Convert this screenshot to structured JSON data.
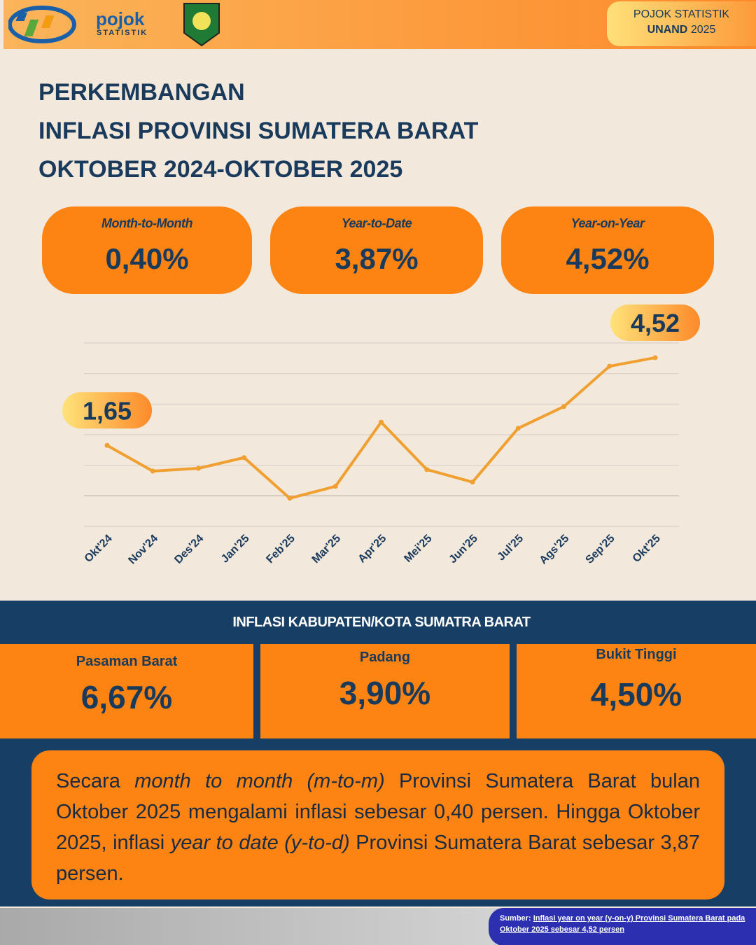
{
  "header": {
    "logo_word": "pojok",
    "logo_sub": "STATISTIK",
    "badge_line1": "POJOK STATISTIK",
    "badge_bold": "UNAND",
    "badge_year": "2025"
  },
  "title": [
    "PERKEMBANGAN",
    "INFLASI PROVINSI SUMATERA BARAT",
    "OKTOBER 2024-OKTOBER 2025"
  ],
  "cards": [
    {
      "label": "Month-to-Month",
      "value": "0,40%"
    },
    {
      "label": "Year-to-Date",
      "value": "3,87%"
    },
    {
      "label": "Year-on-Year",
      "value": "4,52%"
    }
  ],
  "chart_data": {
    "type": "line",
    "categories": [
      "Okt'24",
      "Nov'24",
      "Des'24",
      "Jan'25",
      "Feb'25",
      "Mar'25",
      "Apr'25",
      "Mei'25",
      "Jun'25",
      "Jul'25",
      "Ags'25",
      "Sep'25",
      "Okt'25"
    ],
    "values": [
      1.65,
      0.81,
      0.9,
      1.25,
      -0.08,
      0.31,
      2.41,
      0.86,
      0.45,
      2.21,
      2.92,
      4.24,
      4.52
    ],
    "value_labels": [
      "1,65",
      null,
      null,
      null,
      null,
      null,
      null,
      null,
      null,
      null,
      null,
      null,
      "4,52"
    ],
    "color": "#f0a030",
    "ylim": [
      -1,
      5
    ],
    "yticks": [
      -1,
      0,
      1,
      2,
      3,
      4,
      5
    ],
    "grid": true
  },
  "regions": {
    "title": "INFLASI KABUPATEN/KOTA SUMATRA BARAT",
    "items": [
      {
        "name": "Pasaman Barat",
        "value": "6,67%"
      },
      {
        "name": "Padang",
        "value": "3,90%"
      },
      {
        "name": "Bukit Tinggi",
        "value": "4,50%"
      }
    ]
  },
  "paragraph": [
    "Secara ",
    "month to month (m-to-m)",
    " Provinsi Sumatera Barat bulan Oktober 2025 mengalami inflasi sebesar 0,40 persen. Hingga Oktober 2025, inflasi ",
    "year to date (y-to-d)",
    " Provinsi Sumatera Barat sebesar 3,87 persen."
  ],
  "source": {
    "prefix": "Sumber: ",
    "link": "Inflasi year on year (y-on-y) Provinsi Sumatera Barat pada Oktober 2025 sebesar 4,52 persen"
  }
}
